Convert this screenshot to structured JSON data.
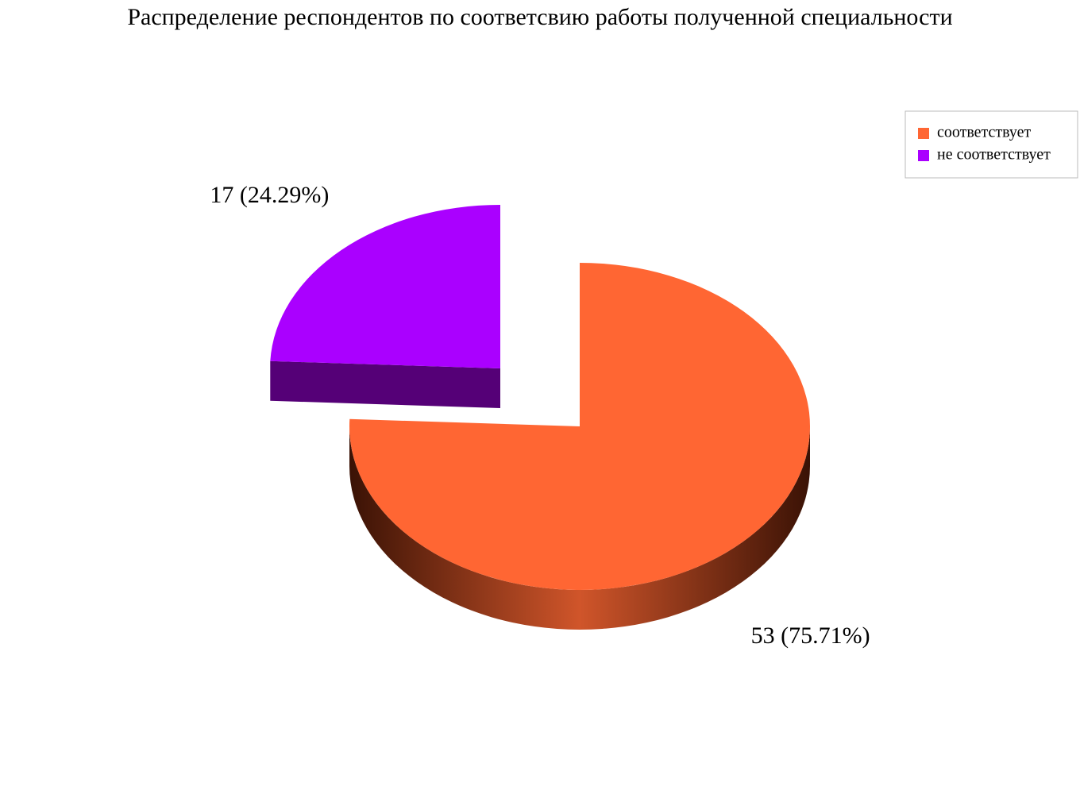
{
  "chart_data": {
    "type": "pie",
    "title": "Распределение респондентов по соответсвию работы полученной специальности",
    "categories": [
      "соответствует",
      "не соответствует"
    ],
    "values": [
      53,
      17
    ],
    "value_labels": [
      "53 (75.71%)",
      "17 (24.29%)"
    ],
    "colors": [
      "#ff6633",
      "#aa00ff"
    ],
    "side_colors": [
      "#7a2a12",
      "#550077"
    ],
    "exploded": [
      false,
      true
    ],
    "legend": "top-right"
  }
}
